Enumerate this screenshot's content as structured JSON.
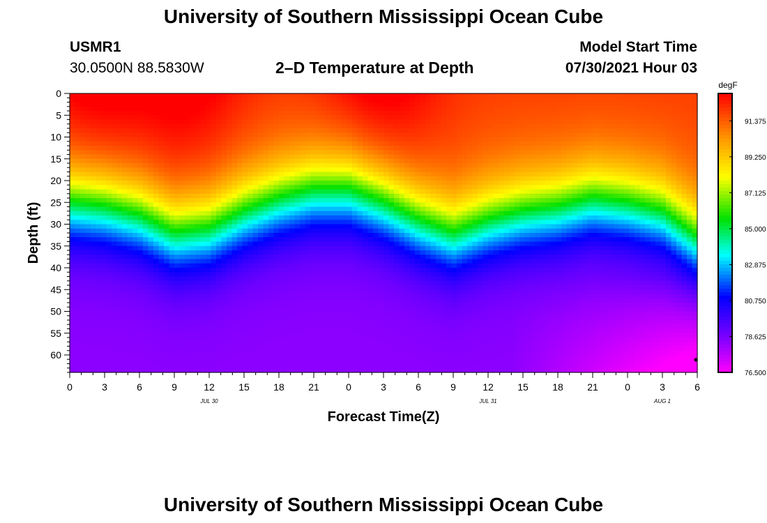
{
  "header": {
    "title": "University of Southern Mississippi Ocean Cube",
    "footer_title": "University of Southern Mississippi Ocean Cube",
    "station_id": "USMR1",
    "coordinates": "30.0500N  88.5830W",
    "plot_title": "2–D Temperature at Depth",
    "model_start_label": "Model Start Time",
    "model_start_value": "07/30/2021 Hour 03"
  },
  "chart_data": {
    "type": "heatmap",
    "title": "2–D Temperature at Depth",
    "xlabel": "Forecast Time(Z)",
    "ylabel": "Depth (ft)",
    "x_range_hours": [
      0,
      54
    ],
    "x_tick_hours": [
      0,
      3,
      6,
      9,
      12,
      15,
      18,
      21,
      24,
      27,
      30,
      33,
      36,
      39,
      42,
      45,
      48,
      51,
      54
    ],
    "x_tick_labels": [
      "0",
      "3",
      "6",
      "9",
      "12",
      "15",
      "18",
      "21",
      "0",
      "3",
      "6",
      "9",
      "12",
      "15",
      "18",
      "21",
      "0",
      "3",
      "6"
    ],
    "date_labels": [
      {
        "hour": 12,
        "text": "JUL 30"
      },
      {
        "hour": 36,
        "text": "JUL 31"
      },
      {
        "hour": 51,
        "text": "AUG 1"
      }
    ],
    "y_range_ft": [
      0,
      64
    ],
    "y_tick_values": [
      0,
      5,
      10,
      15,
      20,
      25,
      30,
      35,
      40,
      45,
      50,
      55,
      60
    ],
    "colorbar": {
      "unit": "degF",
      "min": 76.5,
      "max": 93.0,
      "tick_values": [
        91.375,
        89.25,
        87.125,
        85.0,
        82.875,
        80.75,
        78.625,
        76.5
      ],
      "tick_labels": [
        "91.375",
        "89.250",
        "87.125",
        "85.000",
        "82.875",
        "80.750",
        "78.625",
        "76.500"
      ]
    },
    "thermocline": {
      "description": "approximate depth (ft) of the 85 degF isotherm over forecast time",
      "hours": [
        0,
        3,
        6,
        9,
        12,
        15,
        18,
        21,
        24,
        27,
        30,
        33,
        36,
        39,
        42,
        45,
        48,
        51,
        54
      ],
      "depth_ft": [
        24,
        25,
        27,
        31,
        30,
        26,
        23,
        21,
        21,
        24,
        28,
        31,
        28,
        26,
        25,
        23,
        24,
        26,
        32
      ]
    },
    "surface_peak_hours": [
      2,
      10,
      27
    ],
    "bottom_warm_note": "lowest temperatures near bottom toward end of period"
  }
}
